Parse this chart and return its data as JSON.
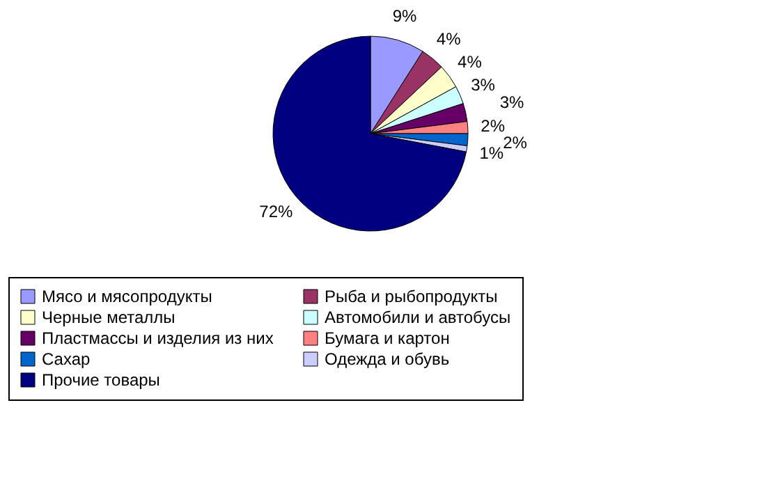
{
  "chart_data": {
    "type": "pie",
    "categories": [
      "Мясо и мясопродукты",
      "Рыба и рыбопродукты",
      "Черные металлы",
      "Автомобили и автобусы",
      "Пластмассы и изделия из них",
      "Бумага и картон",
      "Сахар",
      "Одежда и обувь",
      "Прочие товары"
    ],
    "values": [
      9,
      4,
      4,
      3,
      3,
      2,
      2,
      1,
      72
    ],
    "value_labels": [
      "9%",
      "4%",
      "4%",
      "3%",
      "3%",
      "2%",
      "2%",
      "1%",
      "72%"
    ],
    "colors": [
      "#9999ff",
      "#993366",
      "#ffffcc",
      "#ccffff",
      "#660066",
      "#ff8080",
      "#0066cc",
      "#ccccff",
      "#000080"
    ],
    "legend": "bottom"
  }
}
